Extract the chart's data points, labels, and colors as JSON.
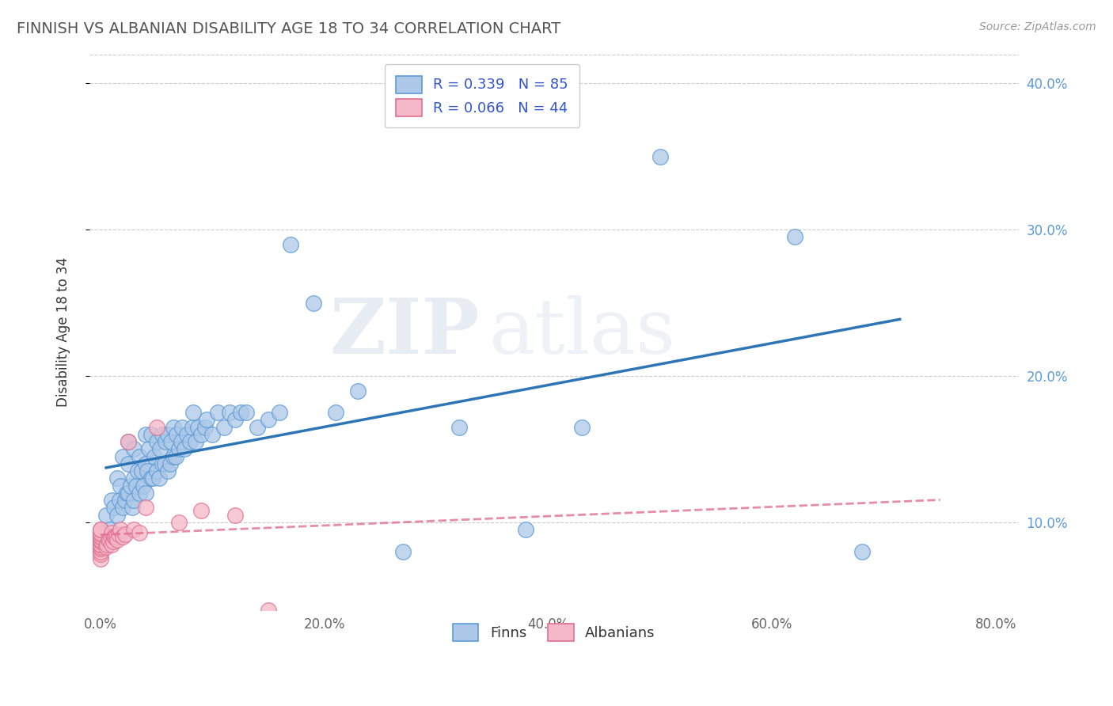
{
  "title": "FINNISH VS ALBANIAN DISABILITY AGE 18 TO 34 CORRELATION CHART",
  "source": "Source: ZipAtlas.com",
  "xlabel_label": "Finns",
  "xlabel_label2": "Albanians",
  "ylabel": "Disability Age 18 to 34",
  "xlim": [
    -0.01,
    0.82
  ],
  "ylim": [
    0.04,
    0.42
  ],
  "x_ticks": [
    0.0,
    0.2,
    0.4,
    0.6,
    0.8
  ],
  "x_tick_labels": [
    "0.0%",
    "20.0%",
    "40.0%",
    "60.0%",
    "80.0%"
  ],
  "y_ticks": [
    0.1,
    0.2,
    0.3,
    0.4
  ],
  "y_tick_labels": [
    "10.0%",
    "20.0%",
    "30.0%",
    "40.0%"
  ],
  "finn_R": 0.339,
  "finn_N": 85,
  "albanian_R": 0.066,
  "albanian_N": 44,
  "finn_color": "#adc8e8",
  "finn_edge_color": "#5b9bd5",
  "finn_line_color": "#2e75b6",
  "albanian_color": "#f4b8c8",
  "albanian_edge_color": "#e07090",
  "albanian_line_color": "#e07090",
  "background_color": "#ffffff",
  "finn_x": [
    0.005,
    0.008,
    0.01,
    0.012,
    0.015,
    0.015,
    0.017,
    0.018,
    0.02,
    0.02,
    0.022,
    0.023,
    0.025,
    0.025,
    0.025,
    0.027,
    0.028,
    0.03,
    0.03,
    0.03,
    0.032,
    0.033,
    0.035,
    0.035,
    0.037,
    0.038,
    0.04,
    0.04,
    0.04,
    0.042,
    0.043,
    0.045,
    0.045,
    0.047,
    0.048,
    0.05,
    0.05,
    0.052,
    0.053,
    0.055,
    0.055,
    0.057,
    0.058,
    0.06,
    0.06,
    0.062,
    0.063,
    0.065,
    0.065,
    0.067,
    0.068,
    0.07,
    0.072,
    0.073,
    0.075,
    0.077,
    0.08,
    0.082,
    0.083,
    0.085,
    0.087,
    0.09,
    0.093,
    0.095,
    0.1,
    0.105,
    0.11,
    0.115,
    0.12,
    0.125,
    0.13,
    0.14,
    0.15,
    0.16,
    0.17,
    0.19,
    0.21,
    0.23,
    0.27,
    0.32,
    0.38,
    0.43,
    0.5,
    0.62,
    0.68
  ],
  "finn_y": [
    0.105,
    0.095,
    0.115,
    0.11,
    0.105,
    0.13,
    0.115,
    0.125,
    0.11,
    0.145,
    0.115,
    0.12,
    0.12,
    0.14,
    0.155,
    0.125,
    0.11,
    0.115,
    0.13,
    0.15,
    0.125,
    0.135,
    0.12,
    0.145,
    0.135,
    0.125,
    0.12,
    0.14,
    0.16,
    0.135,
    0.15,
    0.13,
    0.16,
    0.13,
    0.145,
    0.135,
    0.155,
    0.13,
    0.15,
    0.14,
    0.16,
    0.14,
    0.155,
    0.135,
    0.16,
    0.14,
    0.155,
    0.145,
    0.165,
    0.145,
    0.16,
    0.15,
    0.155,
    0.165,
    0.15,
    0.16,
    0.155,
    0.165,
    0.175,
    0.155,
    0.165,
    0.16,
    0.165,
    0.17,
    0.16,
    0.175,
    0.165,
    0.175,
    0.17,
    0.175,
    0.175,
    0.165,
    0.17,
    0.175,
    0.29,
    0.25,
    0.175,
    0.19,
    0.08,
    0.165,
    0.095,
    0.165,
    0.35,
    0.295,
    0.08
  ],
  "albanian_x": [
    0.0,
    0.0,
    0.0,
    0.0,
    0.0,
    0.0,
    0.0,
    0.0,
    0.0,
    0.0,
    0.0,
    0.0,
    0.0,
    0.0,
    0.0,
    0.0,
    0.0,
    0.0,
    0.0,
    0.005,
    0.006,
    0.007,
    0.008,
    0.009,
    0.01,
    0.01,
    0.011,
    0.012,
    0.013,
    0.014,
    0.015,
    0.016,
    0.018,
    0.02,
    0.022,
    0.025,
    0.03,
    0.035,
    0.04,
    0.05,
    0.07,
    0.09,
    0.12,
    0.15
  ],
  "albanian_y": [
    0.075,
    0.078,
    0.08,
    0.082,
    0.083,
    0.085,
    0.085,
    0.085,
    0.087,
    0.088,
    0.088,
    0.09,
    0.09,
    0.09,
    0.09,
    0.092,
    0.093,
    0.095,
    0.095,
    0.083,
    0.085,
    0.088,
    0.088,
    0.09,
    0.085,
    0.093,
    0.087,
    0.09,
    0.09,
    0.09,
    0.088,
    0.092,
    0.095,
    0.09,
    0.092,
    0.155,
    0.095,
    0.093,
    0.11,
    0.165,
    0.1,
    0.108,
    0.105,
    0.04
  ]
}
